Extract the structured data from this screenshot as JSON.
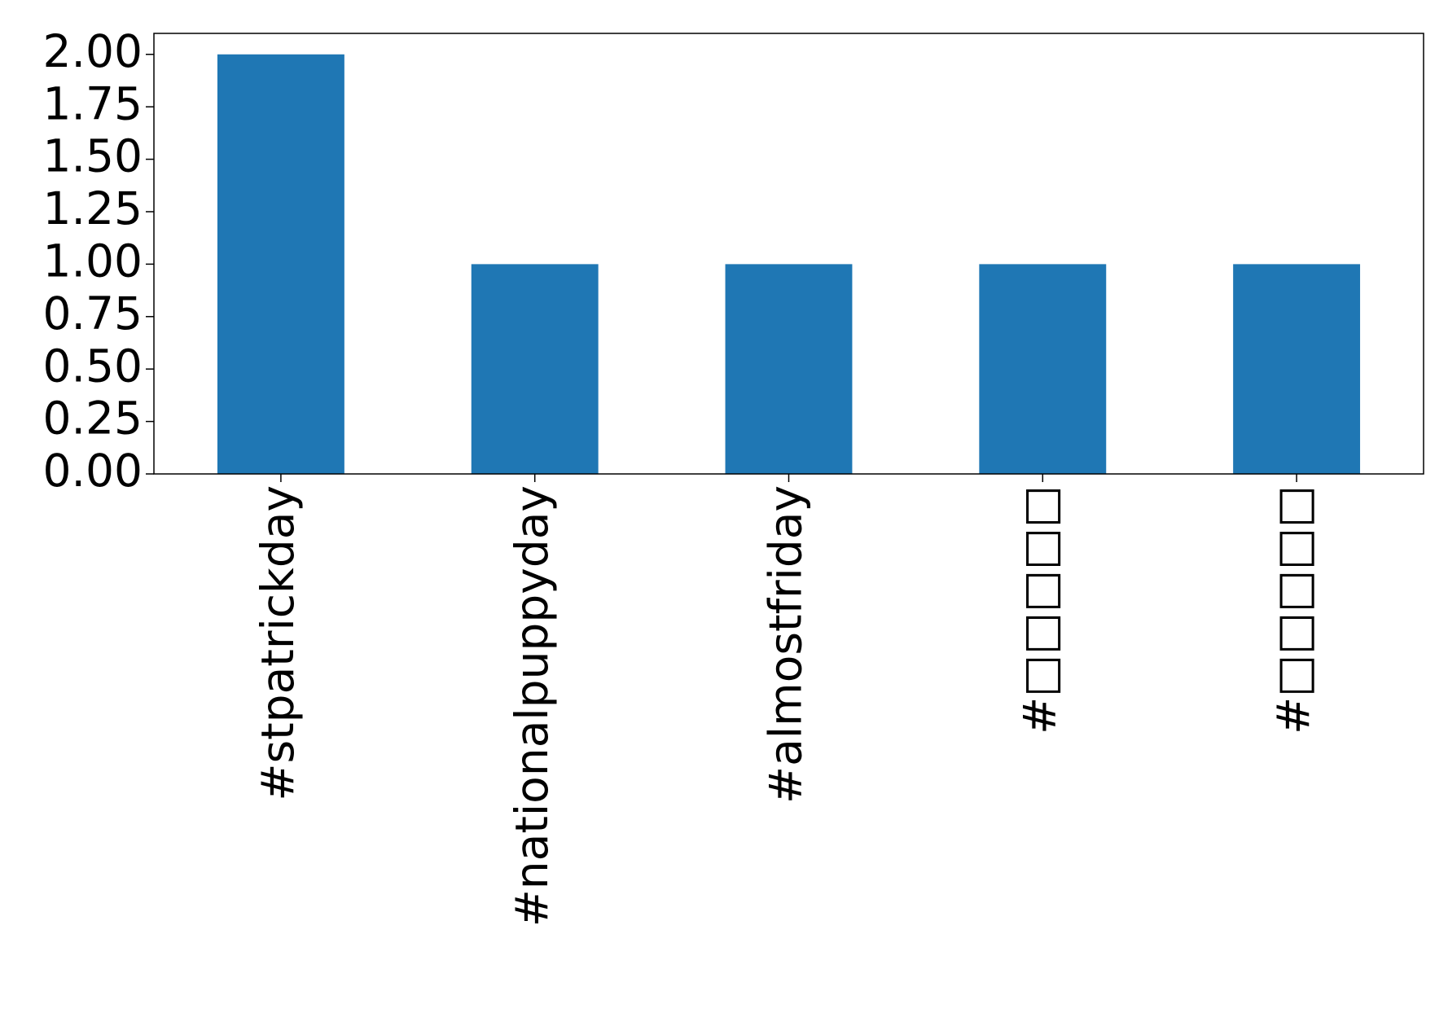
{
  "chart_data": {
    "type": "bar",
    "categories": [
      "#stpatrickday",
      "#nationalpuppyday",
      "#almostfriday",
      "#□□□□□",
      "#□□□□□"
    ],
    "values": [
      2,
      1,
      1,
      1,
      1
    ],
    "color": "#1f77b4",
    "ylim": [
      0,
      2.1
    ],
    "yticks": [
      {
        "value": 0,
        "label": "0.00"
      },
      {
        "value": 0.25,
        "label": "0.25"
      },
      {
        "value": 0.5,
        "label": "0.50"
      },
      {
        "value": 0.75,
        "label": "0.75"
      },
      {
        "value": 1,
        "label": "1.00"
      },
      {
        "value": 1.25,
        "label": "1.25"
      },
      {
        "value": 1.5,
        "label": "1.50"
      },
      {
        "value": 1.75,
        "label": "1.75"
      },
      {
        "value": 2,
        "label": "2.00"
      }
    ],
    "grid": false
  }
}
